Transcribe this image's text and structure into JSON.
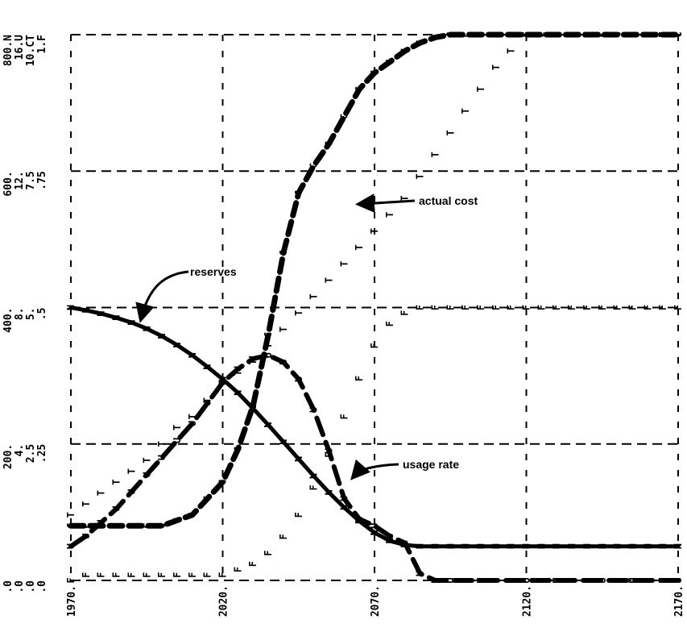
{
  "chart_data": {
    "type": "line",
    "x": [
      1970,
      1975,
      1980,
      1985,
      1990,
      1995,
      2000,
      2005,
      2010,
      2015,
      2020,
      2025,
      2030,
      2035,
      2040,
      2045,
      2050,
      2055,
      2060,
      2065,
      2070,
      2075,
      2080,
      2085,
      2090,
      2095,
      2100,
      2105,
      2110,
      2115,
      2120,
      2125,
      2130,
      2135,
      2140,
      2145,
      2150,
      2155,
      2160,
      2165,
      2170
    ],
    "xlim": [
      1970,
      2170
    ],
    "x_ticks": [
      "1970.",
      "2020.",
      "2070.",
      "2120.",
      "2170."
    ],
    "y_tick_columns": [
      [
        "800.N",
        "600.",
        "400.",
        "200.",
        ".0"
      ],
      [
        "16.U",
        "12.",
        "8.",
        "4.",
        ".0"
      ],
      [
        "10.CT",
        "7.5",
        "5.",
        "2.5",
        ".0"
      ],
      [
        "1.F",
        ".75",
        ".5",
        ".25",
        ".0"
      ]
    ],
    "grid": true,
    "series": [
      {
        "symbol": "N",
        "ylim": [
          0,
          800
        ],
        "values": [
          400,
          396,
          391,
          385,
          378,
          369,
          358,
          345,
          330,
          313,
          295,
          275,
          252,
          228,
          203,
          178,
          153,
          129,
          107,
          87,
          70,
          58,
          52,
          50,
          50,
          50,
          50,
          50,
          50,
          50,
          50,
          50,
          50,
          50,
          50,
          50,
          50,
          50,
          50,
          50,
          50
        ]
      },
      {
        "symbol": "U",
        "ylim": [
          0,
          16
        ],
        "values": [
          1.0,
          1.3,
          1.7,
          2.1,
          2.6,
          3.1,
          3.6,
          4.1,
          4.6,
          5.2,
          5.8,
          6.2,
          6.5,
          6.6,
          6.4,
          5.9,
          5.0,
          3.8,
          2.4,
          1.8,
          1.6,
          1.3,
          1.1,
          0.2,
          0.0,
          0.0,
          0.0,
          0.0,
          0.0,
          0.0,
          0.0,
          0.0,
          0.0,
          0.0,
          0.0,
          0.0,
          0.0,
          0.0,
          0.0,
          0.0,
          0.0
        ]
      },
      {
        "symbol": "C",
        "ylim": [
          0,
          10
        ],
        "values": [
          1.0,
          1.0,
          1.0,
          1.0,
          1.0,
          1.0,
          1.0,
          1.1,
          1.2,
          1.5,
          1.8,
          2.4,
          3.2,
          4.5,
          6.0,
          7.1,
          7.6,
          8.0,
          8.5,
          9.0,
          9.3,
          9.5,
          9.7,
          9.85,
          9.95,
          10,
          10,
          10,
          10,
          10,
          10,
          10,
          10,
          10,
          10,
          10,
          10,
          10,
          10,
          10,
          10
        ]
      },
      {
        "symbol": "T",
        "ylim": [
          0,
          10
        ],
        "values": [
          1.2,
          1.4,
          1.6,
          1.8,
          2.0,
          2.2,
          2.5,
          2.8,
          3.0,
          3.3,
          3.6,
          3.8,
          4.0,
          4.3,
          4.6,
          4.9,
          5.2,
          5.5,
          5.8,
          6.1,
          6.4,
          6.7,
          7.0,
          7.4,
          7.8,
          8.2,
          8.6,
          9.0,
          9.4,
          9.7,
          10,
          10,
          10,
          10,
          10,
          10,
          10,
          10,
          10,
          10,
          10
        ]
      },
      {
        "symbol": "F",
        "ylim": [
          0,
          1
        ],
        "values": [
          0.0,
          0.01,
          0.01,
          0.01,
          0.01,
          0.01,
          0.01,
          0.01,
          0.01,
          0.01,
          0.01,
          0.02,
          0.03,
          0.05,
          0.08,
          0.12,
          0.17,
          0.23,
          0.3,
          0.37,
          0.43,
          0.47,
          0.49,
          0.5,
          0.5,
          0.5,
          0.5,
          0.5,
          0.5,
          0.5,
          0.5,
          0.5,
          0.5,
          0.5,
          0.5,
          0.5,
          0.5,
          0.5,
          0.5,
          0.5,
          0.5
        ]
      }
    ],
    "annotations": [
      {
        "text": "reserves",
        "series": "N"
      },
      {
        "text": "actual cost",
        "series": "C"
      },
      {
        "text": "usage rate",
        "series": "U"
      }
    ]
  }
}
